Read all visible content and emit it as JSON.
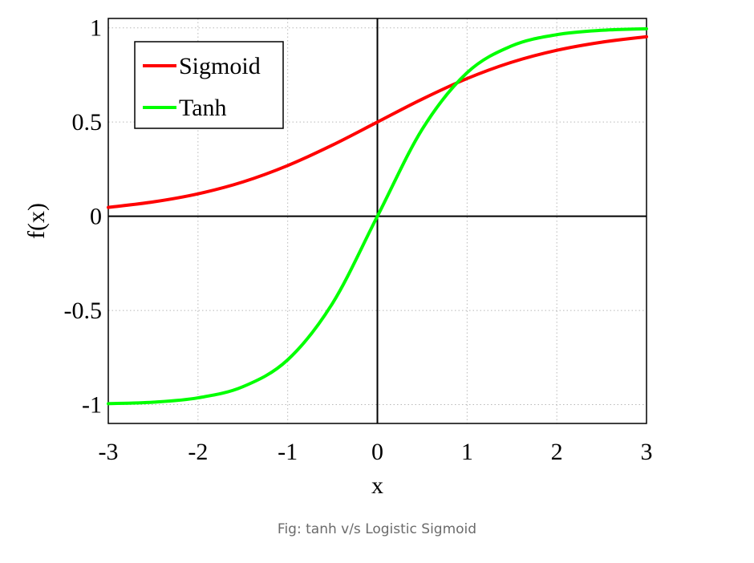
{
  "chart_data": {
    "type": "line",
    "xlabel": "x",
    "ylabel": "f(x)",
    "xlim": [
      -3,
      3
    ],
    "ylim": [
      -1.1,
      1.05
    ],
    "x_ticks": [
      -3,
      -2,
      -1,
      0,
      1,
      2,
      3
    ],
    "y_ticks": [
      -1,
      -0.5,
      0,
      0.5,
      1
    ],
    "grid": true,
    "grid_style": "dotted",
    "zero_lines": true,
    "legend_position": "top-left",
    "x": [
      -3,
      -2.5,
      -2,
      -1.5,
      -1,
      -0.5,
      0,
      0.5,
      1,
      1.5,
      2,
      2.5,
      3
    ],
    "series": [
      {
        "name": "Sigmoid",
        "color": "#ff0000",
        "values": [
          0.047,
          0.076,
          0.119,
          0.182,
          0.269,
          0.378,
          0.5,
          0.622,
          0.731,
          0.818,
          0.881,
          0.924,
          0.953
        ]
      },
      {
        "name": "Tanh",
        "color": "#00ff00",
        "values": [
          -0.995,
          -0.987,
          -0.964,
          -0.905,
          -0.762,
          -0.462,
          0,
          0.462,
          0.762,
          0.905,
          0.964,
          0.987,
          0.995
        ]
      }
    ]
  },
  "caption": "Fig: tanh v/s Logistic Sigmoid"
}
